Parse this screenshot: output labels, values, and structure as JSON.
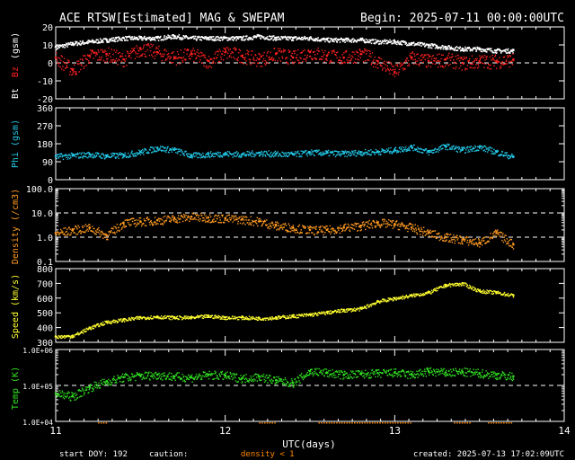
{
  "header": {
    "title": "ACE RTSW[Estimated] MAG & SWEPAM",
    "begin": "Begin: 2025-07-11 00:00:00UTC"
  },
  "footer": {
    "start_doy": "start DOY: 192",
    "caution": "caution:",
    "density_note": "density < 1",
    "created": "created: 2025-07-13 17:02:09UTC"
  },
  "colors": {
    "background": "#000000",
    "bt": "#ffffff",
    "bz": "#ff2020",
    "phi": "#22c8e8",
    "density": "#ff9a20",
    "speed": "#ffff30",
    "temp": "#30e020",
    "density_warning": "#ff8800"
  },
  "chart_data": [
    {
      "type": "scatter",
      "ylabel_parts": [
        "Bt",
        "Bz",
        "(gsm)"
      ],
      "ylim": [
        -20,
        20
      ],
      "yticks": [
        "20",
        "10",
        "0",
        "-10",
        "-20"
      ],
      "dashed_reference": 0,
      "series": [
        {
          "name": "Bt",
          "x": [
            11.0,
            11.1,
            11.2,
            11.3,
            11.4,
            11.5,
            11.6,
            11.7,
            11.8,
            11.9,
            12.0,
            12.1,
            12.2,
            12.3,
            12.4,
            12.5,
            12.6,
            12.7,
            12.8,
            12.9,
            13.0,
            13.1,
            13.2,
            13.3,
            13.4,
            13.5,
            13.6,
            13.7
          ],
          "values": [
            9,
            11,
            12,
            13,
            14,
            14,
            14,
            15,
            14,
            14,
            14,
            14,
            15,
            14,
            14,
            14,
            13,
            13,
            13,
            12,
            12,
            11,
            10,
            9,
            8,
            8,
            7,
            7
          ]
        },
        {
          "name": "Bz",
          "x": [
            11.0,
            11.1,
            11.2,
            11.3,
            11.4,
            11.5,
            11.6,
            11.7,
            11.8,
            11.9,
            12.0,
            12.1,
            12.2,
            12.3,
            12.4,
            12.5,
            12.6,
            12.7,
            12.8,
            12.9,
            13.0,
            13.1,
            13.2,
            13.3,
            13.4,
            13.5,
            13.6,
            13.7
          ],
          "values": [
            3,
            -4,
            4,
            5,
            2,
            8,
            6,
            3,
            5,
            1,
            6,
            4,
            2,
            5,
            3,
            6,
            4,
            3,
            5,
            1,
            -5,
            3,
            1,
            2,
            0,
            1,
            1,
            2
          ]
        }
      ]
    },
    {
      "type": "scatter",
      "ylabel_parts": [
        "Phi (gsm)"
      ],
      "ylim": [
        0,
        360
      ],
      "yticks": [
        "360",
        "270",
        "180",
        "90",
        "0"
      ],
      "series": [
        {
          "name": "Phi",
          "x": [
            11.0,
            11.1,
            11.2,
            11.3,
            11.4,
            11.5,
            11.6,
            11.7,
            11.8,
            11.9,
            12.0,
            12.1,
            12.2,
            12.3,
            12.4,
            12.5,
            12.6,
            12.7,
            12.8,
            12.9,
            13.0,
            13.1,
            13.2,
            13.3,
            13.4,
            13.5,
            13.6,
            13.7
          ],
          "values": [
            118,
            122,
            128,
            120,
            125,
            140,
            160,
            150,
            122,
            128,
            132,
            128,
            135,
            130,
            128,
            138,
            135,
            132,
            138,
            142,
            150,
            165,
            140,
            170,
            150,
            165,
            140,
            115
          ]
        }
      ]
    },
    {
      "type": "scatter",
      "ylabel_parts": [
        "Density (/cm3)"
      ],
      "scale": "log",
      "ylim": [
        0.1,
        100
      ],
      "yticks": [
        "100.0",
        "10.0",
        "1.0",
        "0.1"
      ],
      "dashed_reference": [
        10,
        1
      ],
      "series": [
        {
          "name": "Density",
          "x": [
            11.0,
            11.1,
            11.2,
            11.3,
            11.4,
            11.5,
            11.6,
            11.7,
            11.8,
            11.9,
            12.0,
            12.1,
            12.2,
            12.3,
            12.4,
            12.5,
            12.6,
            12.7,
            12.8,
            12.9,
            13.0,
            13.1,
            13.2,
            13.3,
            13.4,
            13.5,
            13.6,
            13.7
          ],
          "values": [
            1.5,
            2.0,
            2.5,
            1.2,
            4.0,
            4.5,
            5.0,
            6.0,
            7.0,
            6.5,
            6.0,
            5.5,
            4.5,
            3.0,
            2.5,
            2.0,
            2.0,
            2.5,
            3.0,
            4.0,
            3.5,
            2.5,
            1.5,
            1.0,
            0.8,
            0.6,
            1.5,
            0.5
          ]
        }
      ]
    },
    {
      "type": "scatter",
      "ylabel_parts": [
        "Speed (km/s)"
      ],
      "ylim": [
        300,
        800
      ],
      "yticks": [
        "800",
        "700",
        "600",
        "500",
        "400",
        "300"
      ],
      "series": [
        {
          "name": "Speed",
          "x": [
            11.0,
            11.1,
            11.2,
            11.3,
            11.4,
            11.5,
            11.6,
            11.7,
            11.8,
            11.9,
            12.0,
            12.1,
            12.2,
            12.3,
            12.4,
            12.5,
            12.6,
            12.7,
            12.8,
            12.9,
            13.0,
            13.1,
            13.2,
            13.3,
            13.4,
            13.5,
            13.6,
            13.7
          ],
          "values": [
            340,
            345,
            400,
            440,
            455,
            470,
            475,
            470,
            470,
            480,
            470,
            470,
            465,
            470,
            480,
            490,
            505,
            520,
            530,
            580,
            600,
            620,
            640,
            690,
            700,
            650,
            640,
            620
          ]
        }
      ]
    },
    {
      "type": "scatter",
      "ylabel_parts": [
        "Temp (K)"
      ],
      "scale": "log",
      "ylim": [
        10000,
        1000000
      ],
      "yticks": [
        "1.0E+06",
        "1.0E+05",
        "1.0E+04"
      ],
      "dashed_reference": 100000,
      "series": [
        {
          "name": "Temp",
          "x": [
            11.0,
            11.1,
            11.2,
            11.3,
            11.4,
            11.5,
            11.6,
            11.7,
            11.8,
            11.9,
            12.0,
            12.1,
            12.2,
            12.3,
            12.4,
            12.5,
            12.6,
            12.7,
            12.8,
            12.9,
            13.0,
            13.1,
            13.2,
            13.3,
            13.4,
            13.5,
            13.6,
            13.7
          ],
          "values": [
            60000,
            50000,
            90000,
            130000,
            170000,
            190000,
            200000,
            180000,
            170000,
            200000,
            190000,
            160000,
            180000,
            140000,
            120000,
            250000,
            230000,
            200000,
            210000,
            220000,
            230000,
            200000,
            250000,
            230000,
            240000,
            220000,
            200000,
            180000
          ]
        }
      ]
    }
  ],
  "x_axis": {
    "label": "UTC(days)",
    "xlim": [
      11,
      14
    ],
    "tick_labels": [
      "11",
      "12",
      "13",
      "14"
    ]
  }
}
